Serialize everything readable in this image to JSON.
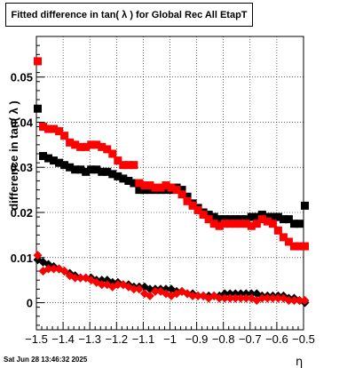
{
  "chart_data": {
    "type": "scatter",
    "title": "Fitted difference in tan( λ ) for Global Rec All EtapT",
    "xlabel": "η",
    "ylabel": "difference in tan( λ )",
    "xlim": [
      -1.5,
      -0.5
    ],
    "ylim": [
      -0.006,
      0.059
    ],
    "grid": true,
    "x_ticks": [
      -1.5,
      -1.4,
      -1.3,
      -1.2,
      -1.1,
      -1.0,
      -0.9,
      -0.8,
      -0.7,
      -0.6,
      -0.5
    ],
    "x_tick_labels": [
      "−1.5",
      "−1.4",
      "−1.3",
      "−1.2",
      "−1.1",
      "−1",
      "−0.9",
      "−0.8",
      "−0.7",
      "−0.6",
      "−0.5"
    ],
    "y_ticks": [
      0,
      0.01,
      0.02,
      0.03,
      0.04,
      0.05
    ],
    "y_tick_labels": [
      "0",
      "0.01",
      "0.02",
      "0.03",
      "0.04",
      "0.05"
    ],
    "series": [
      {
        "marker": "square",
        "color": "#000000",
        "x": [
          -1.495,
          -1.475,
          -1.455,
          -1.435,
          -1.415,
          -1.395,
          -1.375,
          -1.355,
          -1.335,
          -1.315,
          -1.295,
          -1.275,
          -1.255,
          -1.235,
          -1.215,
          -1.195,
          -1.175,
          -1.155,
          -1.135,
          -1.115,
          -1.095,
          -1.075,
          -1.055,
          -1.035,
          -1.015,
          -0.995,
          -0.975,
          -0.955,
          -0.935,
          -0.915,
          -0.895,
          -0.875,
          -0.855,
          -0.835,
          -0.815,
          -0.795,
          -0.775,
          -0.755,
          -0.735,
          -0.715,
          -0.695,
          -0.675,
          -0.655,
          -0.635,
          -0.615,
          -0.595,
          -0.575,
          -0.555,
          -0.535,
          -0.515,
          -0.495
        ],
        "y": [
          0.043,
          0.0325,
          0.032,
          0.0315,
          0.031,
          0.0305,
          0.03,
          0.0295,
          0.0295,
          0.029,
          0.0295,
          0.0295,
          0.029,
          0.029,
          0.0285,
          0.028,
          0.0275,
          0.027,
          0.0265,
          0.025,
          0.025,
          0.025,
          0.025,
          0.025,
          0.025,
          0.025,
          0.0255,
          0.025,
          0.0235,
          0.022,
          0.021,
          0.02,
          0.0195,
          0.019,
          0.0185,
          0.0185,
          0.0185,
          0.0185,
          0.0185,
          0.0185,
          0.019,
          0.019,
          0.0195,
          0.019,
          0.019,
          0.019,
          0.0185,
          0.0185,
          0.0175,
          0.0175,
          0.0215
        ]
      },
      {
        "marker": "square",
        "color": "#ff0000",
        "x": [
          -1.495,
          -1.475,
          -1.455,
          -1.435,
          -1.415,
          -1.395,
          -1.375,
          -1.355,
          -1.335,
          -1.315,
          -1.295,
          -1.275,
          -1.255,
          -1.235,
          -1.215,
          -1.195,
          -1.175,
          -1.155,
          -1.135,
          -1.115,
          -1.095,
          -1.075,
          -1.055,
          -1.035,
          -1.015,
          -0.995,
          -0.975,
          -0.955,
          -0.935,
          -0.915,
          -0.895,
          -0.875,
          -0.855,
          -0.835,
          -0.815,
          -0.795,
          -0.775,
          -0.755,
          -0.735,
          -0.715,
          -0.695,
          -0.675,
          -0.655,
          -0.635,
          -0.615,
          -0.595,
          -0.575,
          -0.555,
          -0.535,
          -0.515,
          -0.495
        ],
        "y": [
          0.0535,
          0.039,
          0.0385,
          0.0385,
          0.038,
          0.037,
          0.0355,
          0.035,
          0.0345,
          0.0345,
          0.035,
          0.035,
          0.0345,
          0.034,
          0.033,
          0.0315,
          0.0305,
          0.0305,
          0.0305,
          0.0265,
          0.026,
          0.026,
          0.0255,
          0.0255,
          0.026,
          0.0255,
          0.025,
          0.024,
          0.0225,
          0.0215,
          0.0205,
          0.0195,
          0.0185,
          0.0175,
          0.017,
          0.0175,
          0.0175,
          0.0175,
          0.0175,
          0.0175,
          0.017,
          0.0175,
          0.0185,
          0.018,
          0.0175,
          0.016,
          0.0145,
          0.0135,
          0.0125,
          0.0125,
          0.0125
        ]
      },
      {
        "marker": "diamond",
        "color": "#000000",
        "x": [
          -1.495,
          -1.475,
          -1.455,
          -1.435,
          -1.415,
          -1.395,
          -1.375,
          -1.355,
          -1.335,
          -1.315,
          -1.295,
          -1.275,
          -1.255,
          -1.235,
          -1.215,
          -1.195,
          -1.175,
          -1.155,
          -1.135,
          -1.115,
          -1.095,
          -1.075,
          -1.055,
          -1.035,
          -1.015,
          -0.995,
          -0.975,
          -0.955,
          -0.935,
          -0.915,
          -0.895,
          -0.875,
          -0.855,
          -0.835,
          -0.815,
          -0.795,
          -0.775,
          -0.755,
          -0.735,
          -0.715,
          -0.695,
          -0.675,
          -0.655,
          -0.635,
          -0.615,
          -0.595,
          -0.575,
          -0.555,
          -0.535,
          -0.515,
          -0.495
        ],
        "y": [
          0.0095,
          0.009,
          0.0085,
          0.008,
          0.0075,
          0.007,
          0.0065,
          0.006,
          0.0055,
          0.0055,
          0.0055,
          0.005,
          0.005,
          0.005,
          0.0045,
          0.0045,
          0.004,
          0.004,
          0.0035,
          0.0035,
          0.0035,
          0.003,
          0.003,
          0.003,
          0.003,
          0.003,
          0.0025,
          0.0025,
          0.002,
          0.002,
          0.0015,
          0.0015,
          0.0015,
          0.0015,
          0.0015,
          0.002,
          0.002,
          0.002,
          0.002,
          0.002,
          0.002,
          0.002,
          0.0015,
          0.0015,
          0.0015,
          0.0015,
          0.0015,
          0.001,
          0.001,
          0.0005,
          0.0
        ]
      },
      {
        "marker": "diamond",
        "color": "#ff0000",
        "x": [
          -1.495,
          -1.475,
          -1.455,
          -1.435,
          -1.415,
          -1.395,
          -1.375,
          -1.355,
          -1.335,
          -1.315,
          -1.295,
          -1.275,
          -1.255,
          -1.235,
          -1.215,
          -1.195,
          -1.175,
          -1.155,
          -1.135,
          -1.115,
          -1.095,
          -1.075,
          -1.055,
          -1.035,
          -1.015,
          -0.995,
          -0.975,
          -0.955,
          -0.935,
          -0.915,
          -0.895,
          -0.875,
          -0.855,
          -0.835,
          -0.815,
          -0.795,
          -0.775,
          -0.755,
          -0.735,
          -0.715,
          -0.695,
          -0.675,
          -0.655,
          -0.635,
          -0.615,
          -0.595,
          -0.575,
          -0.555,
          -0.535,
          -0.515,
          -0.495
        ],
        "y": [
          0.0105,
          0.007,
          0.0075,
          0.0075,
          0.0075,
          0.007,
          0.006,
          0.0055,
          0.0055,
          0.0055,
          0.005,
          0.0045,
          0.004,
          0.004,
          0.0035,
          0.004,
          0.004,
          0.0035,
          0.003,
          0.003,
          0.002,
          0.0015,
          0.0025,
          0.0025,
          0.002,
          0.0015,
          0.002,
          0.0025,
          0.002,
          0.0015,
          0.0015,
          0.0015,
          0.001,
          0.0015,
          0.001,
          0.001,
          0.001,
          0.001,
          0.001,
          0.001,
          0.001,
          0.0005,
          0.001,
          0.001,
          0.001,
          0.001,
          0.001,
          0.0005,
          0.0005,
          0.0005,
          0.0005
        ]
      }
    ]
  },
  "footer": {
    "datetime": "Sat Jun 28 13:46:32 2025"
  }
}
